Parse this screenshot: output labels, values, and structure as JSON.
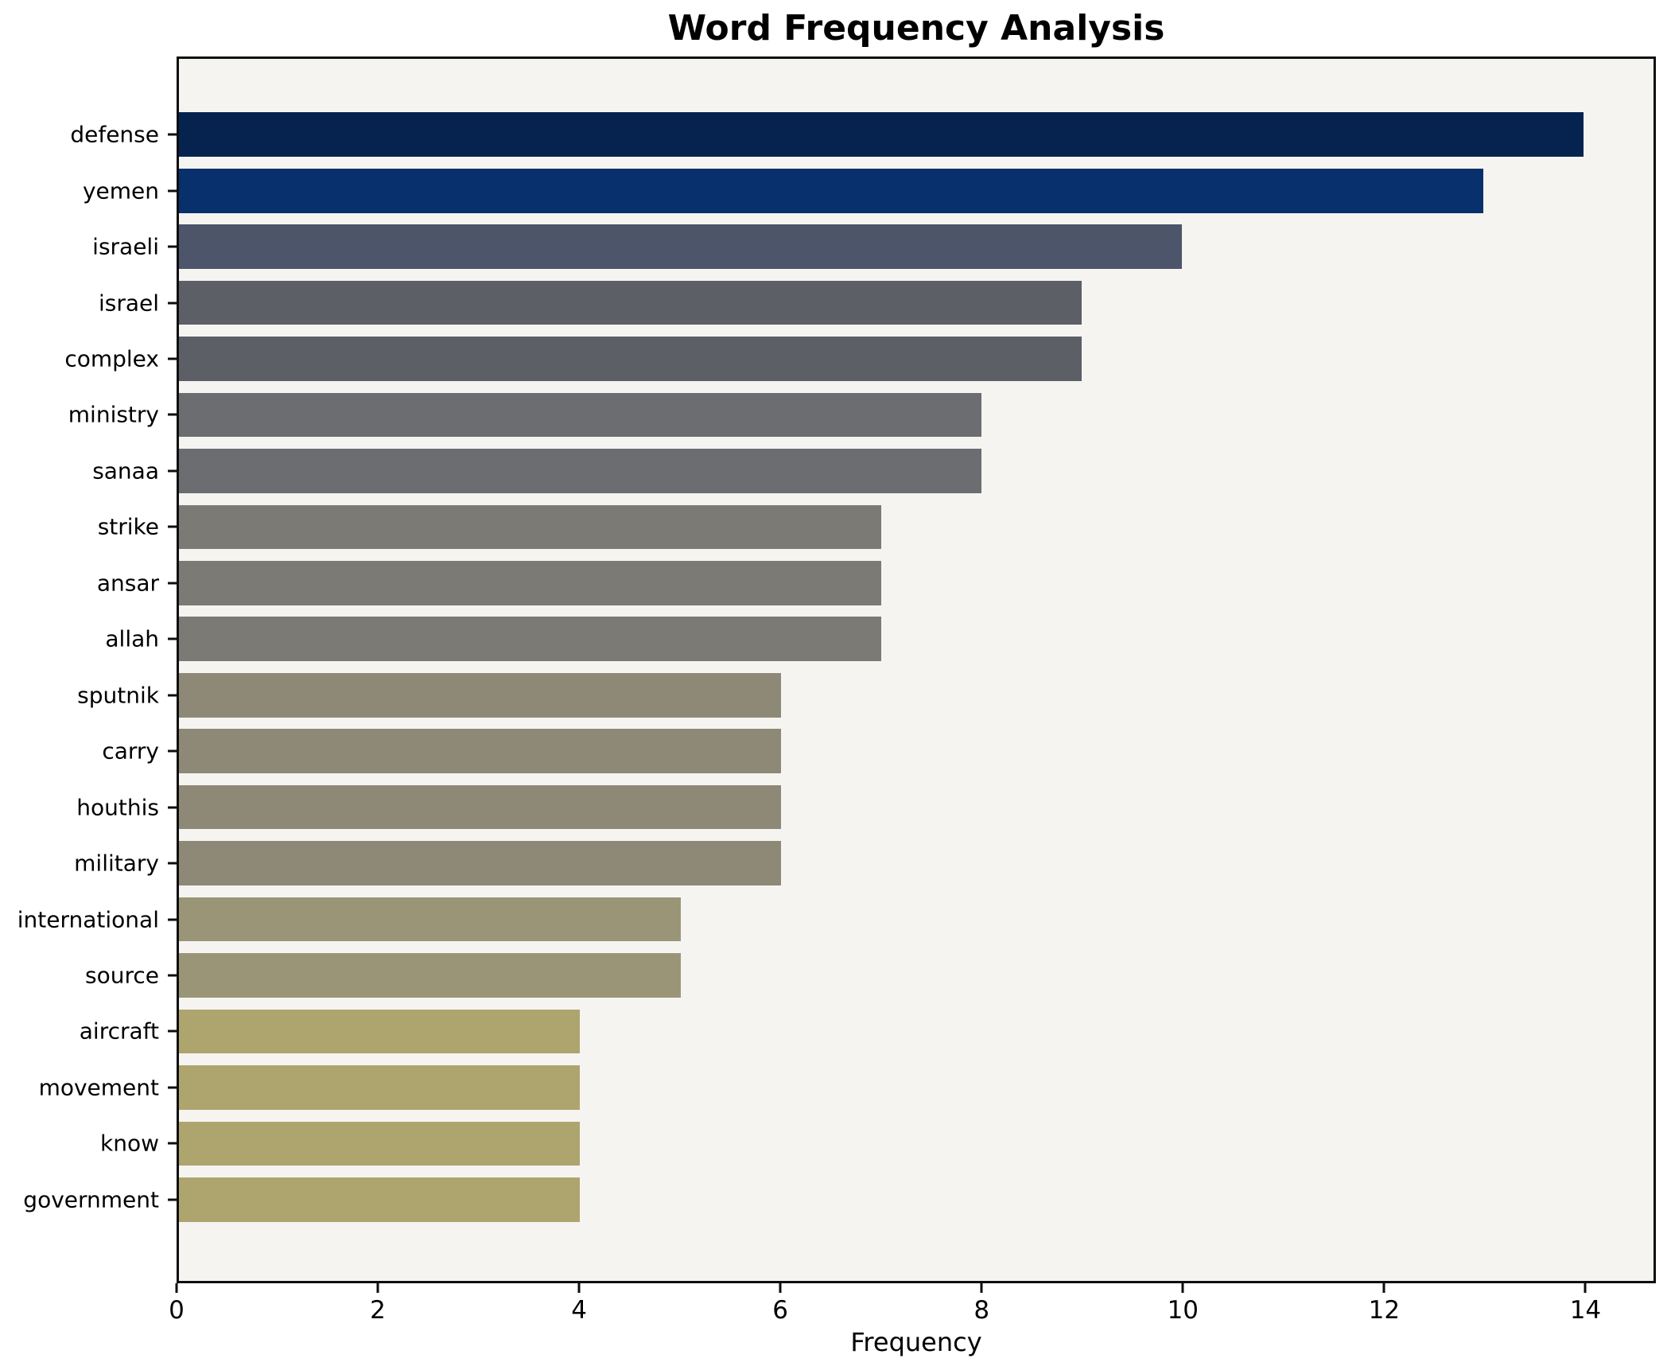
{
  "chart_data": {
    "type": "bar",
    "orientation": "horizontal",
    "title": "Word Frequency Analysis",
    "xlabel": "Frequency",
    "ylabel": "",
    "xlim": [
      0,
      14.7
    ],
    "x_ticks": [
      0,
      2,
      4,
      6,
      8,
      10,
      12,
      14
    ],
    "grid": false,
    "legend": "none",
    "categories": [
      "defense",
      "yemen",
      "israeli",
      "israel",
      "complex",
      "ministry",
      "sanaa",
      "strike",
      "ansar",
      "allah",
      "sputnik",
      "carry",
      "houthis",
      "military",
      "international",
      "source",
      "aircraft",
      "movement",
      "know",
      "government"
    ],
    "values": [
      14,
      13,
      10,
      9,
      9,
      8,
      8,
      7,
      7,
      7,
      6,
      6,
      6,
      6,
      5,
      5,
      4,
      4,
      4,
      4
    ],
    "bar_colors": [
      "#05234e",
      "#07306c",
      "#4c5569",
      "#5d5f67",
      "#5d5f67",
      "#6c6d71",
      "#6c6d71",
      "#7b7a74",
      "#7b7a74",
      "#7b7a74",
      "#8e8977",
      "#8e8977",
      "#8e8977",
      "#8e8977",
      "#9b9578",
      "#9b9578",
      "#aea46e",
      "#aea46e",
      "#aea46e",
      "#aea46e"
    ]
  },
  "colors": {
    "figure_bg": "#ffffff",
    "plot_bg": "#f5f4f1",
    "spine": "#0e0e0e",
    "text": "#000000"
  }
}
